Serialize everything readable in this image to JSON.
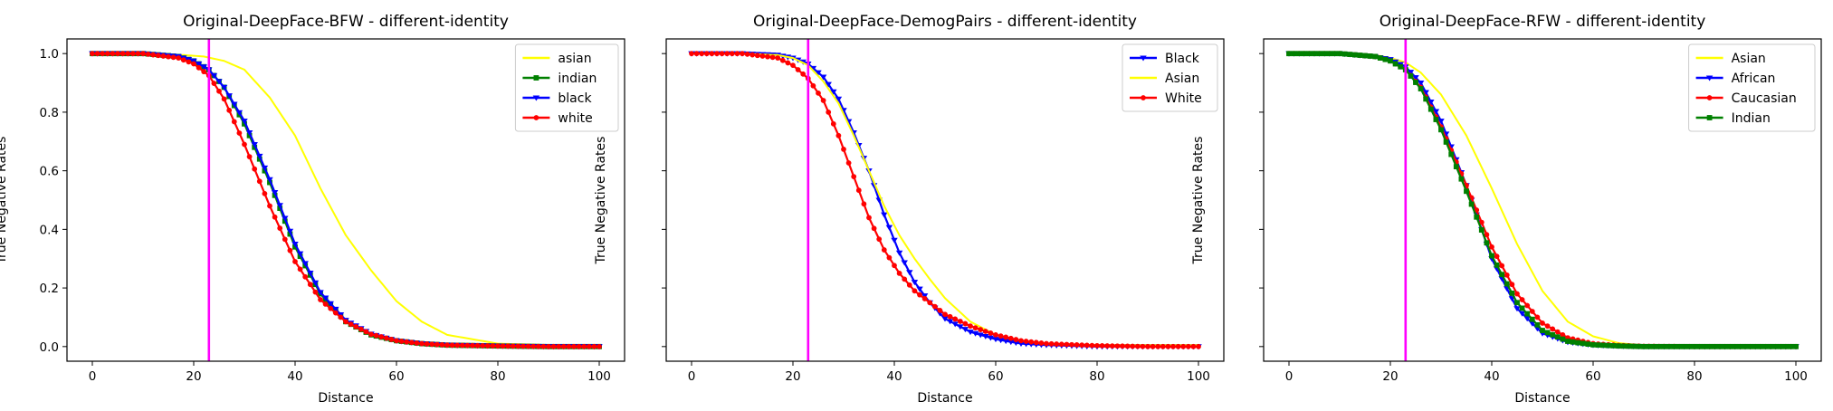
{
  "chart_data": [
    {
      "type": "line",
      "title": "Original-DeepFace-BFW - different-identity",
      "xlabel": "Distance",
      "ylabel": "True Negative Rates",
      "xlim": [
        -5,
        105
      ],
      "ylim": [
        -0.05,
        1.05
      ],
      "xticks": [
        0,
        20,
        40,
        60,
        80,
        100
      ],
      "yticks": [
        0.0,
        0.2,
        0.4,
        0.6,
        0.8,
        1.0
      ],
      "ytick_labels_shown": true,
      "threshold_x": 23,
      "threshold_color": "#ff00ff",
      "legend_location": "top-right",
      "series": [
        {
          "name": "asian",
          "color": "#ffff00",
          "marker": "none",
          "x": [
            0,
            10,
            18,
            22,
            26,
            30,
            35,
            40,
            45,
            50,
            55,
            60,
            65,
            70,
            80,
            90,
            100
          ],
          "y": [
            1.0,
            1.0,
            0.995,
            0.99,
            0.975,
            0.945,
            0.85,
            0.72,
            0.54,
            0.38,
            0.26,
            0.155,
            0.085,
            0.04,
            0.01,
            0.005,
            0.005
          ]
        },
        {
          "name": "indian",
          "color": "#008000",
          "marker": "square",
          "x": [
            0,
            10,
            17,
            20,
            23,
            26,
            30,
            35,
            40,
            45,
            50,
            55,
            60,
            65,
            70,
            80,
            90,
            100
          ],
          "y": [
            1.0,
            1.0,
            0.99,
            0.975,
            0.945,
            0.885,
            0.76,
            0.56,
            0.34,
            0.18,
            0.085,
            0.04,
            0.02,
            0.01,
            0.005,
            0.002,
            0.0,
            0.0
          ]
        },
        {
          "name": "black",
          "color": "#0000ff",
          "marker": "triangle-down",
          "x": [
            0,
            10,
            17,
            20,
            23,
            26,
            30,
            35,
            40,
            45,
            50,
            55,
            60,
            65,
            70,
            80,
            90,
            100
          ],
          "y": [
            1.0,
            1.0,
            0.99,
            0.975,
            0.945,
            0.885,
            0.77,
            0.57,
            0.35,
            0.185,
            0.09,
            0.043,
            0.02,
            0.01,
            0.005,
            0.002,
            0.0,
            0.0
          ]
        },
        {
          "name": "white",
          "color": "#ff0000",
          "marker": "circle",
          "x": [
            0,
            10,
            17,
            20,
            23,
            26,
            30,
            35,
            40,
            45,
            50,
            55,
            60,
            65,
            70,
            80,
            90,
            100
          ],
          "y": [
            1.0,
            1.0,
            0.985,
            0.965,
            0.925,
            0.845,
            0.69,
            0.48,
            0.29,
            0.16,
            0.085,
            0.042,
            0.02,
            0.01,
            0.005,
            0.002,
            0.0,
            0.0
          ]
        }
      ]
    },
    {
      "type": "line",
      "title": "Original-DeepFace-DemogPairs - different-identity",
      "xlabel": "Distance",
      "ylabel": "True Negative Rates",
      "xlim": [
        -5,
        105
      ],
      "ylim": [
        -0.05,
        1.05
      ],
      "xticks": [
        0,
        20,
        40,
        60,
        80,
        100
      ],
      "yticks": [
        0.0,
        0.2,
        0.4,
        0.6,
        0.8,
        1.0
      ],
      "ytick_labels_shown": false,
      "threshold_x": 23,
      "threshold_color": "#ff00ff",
      "legend_location": "top-right",
      "series": [
        {
          "name": "Black",
          "color": "#0000ff",
          "marker": "triangle-down",
          "x": [
            0,
            10,
            17,
            20,
            23,
            26,
            29,
            32,
            35,
            38,
            41,
            44,
            47,
            50,
            55,
            60,
            65,
            70,
            80,
            90,
            100
          ],
          "y": [
            1.0,
            1.0,
            0.995,
            0.985,
            0.965,
            0.92,
            0.845,
            0.73,
            0.6,
            0.45,
            0.32,
            0.22,
            0.15,
            0.095,
            0.05,
            0.025,
            0.01,
            0.005,
            0.0,
            0.0,
            0.0
          ]
        },
        {
          "name": "Asian",
          "color": "#ffff00",
          "marker": "none",
          "x": [
            0,
            10,
            17,
            20,
            23,
            26,
            29,
            32,
            35,
            38,
            41,
            44,
            47,
            50,
            55,
            60,
            65,
            70,
            80,
            90,
            100
          ],
          "y": [
            1.0,
            1.0,
            0.995,
            0.985,
            0.96,
            0.905,
            0.83,
            0.72,
            0.6,
            0.48,
            0.38,
            0.3,
            0.23,
            0.165,
            0.085,
            0.04,
            0.02,
            0.01,
            0.005,
            0.005,
            0.005
          ]
        },
        {
          "name": "White",
          "color": "#ff0000",
          "marker": "circle",
          "x": [
            0,
            10,
            17,
            20,
            23,
            26,
            29,
            32,
            35,
            38,
            41,
            44,
            47,
            50,
            55,
            60,
            65,
            70,
            80,
            90,
            100
          ],
          "y": [
            1.0,
            1.0,
            0.985,
            0.96,
            0.915,
            0.84,
            0.72,
            0.58,
            0.44,
            0.33,
            0.25,
            0.19,
            0.15,
            0.11,
            0.07,
            0.04,
            0.02,
            0.01,
            0.003,
            0.0,
            0.0
          ]
        }
      ]
    },
    {
      "type": "line",
      "title": "Original-DeepFace-RFW - different-identity",
      "xlabel": "Distance",
      "ylabel": "True Negative Rates",
      "xlim": [
        -5,
        105
      ],
      "ylim": [
        -0.05,
        1.05
      ],
      "xticks": [
        0,
        20,
        40,
        60,
        80,
        100
      ],
      "yticks": [
        0.0,
        0.2,
        0.4,
        0.6,
        0.8,
        1.0
      ],
      "ytick_labels_shown": false,
      "threshold_x": 23,
      "threshold_color": "#ff00ff",
      "legend_location": "top-right",
      "series": [
        {
          "name": "Asian",
          "color": "#ffff00",
          "marker": "none",
          "x": [
            0,
            10,
            17,
            20,
            23,
            26,
            30,
            35,
            40,
            45,
            50,
            55,
            60,
            65,
            70,
            80,
            90,
            100
          ],
          "y": [
            1.0,
            1.0,
            0.995,
            0.985,
            0.97,
            0.935,
            0.86,
            0.72,
            0.54,
            0.35,
            0.19,
            0.085,
            0.035,
            0.012,
            0.004,
            0.001,
            0.0,
            0.0
          ]
        },
        {
          "name": "African",
          "color": "#0000ff",
          "marker": "triangle-down",
          "x": [
            0,
            10,
            17,
            20,
            23,
            26,
            30,
            35,
            40,
            45,
            50,
            55,
            60,
            65,
            70,
            80,
            90,
            100
          ],
          "y": [
            1.0,
            1.0,
            0.99,
            0.98,
            0.955,
            0.9,
            0.77,
            0.55,
            0.3,
            0.13,
            0.045,
            0.015,
            0.005,
            0.002,
            0.0,
            0.0,
            0.0,
            0.0
          ]
        },
        {
          "name": "Caucasian",
          "color": "#ff0000",
          "marker": "circle",
          "x": [
            0,
            10,
            17,
            20,
            23,
            26,
            30,
            35,
            40,
            45,
            50,
            55,
            60,
            65,
            70,
            80,
            90,
            100
          ],
          "y": [
            1.0,
            1.0,
            0.99,
            0.975,
            0.945,
            0.885,
            0.75,
            0.55,
            0.34,
            0.18,
            0.08,
            0.03,
            0.01,
            0.004,
            0.001,
            0.0,
            0.0,
            0.0
          ]
        },
        {
          "name": "Indian",
          "color": "#008000",
          "marker": "square",
          "x": [
            0,
            10,
            17,
            20,
            23,
            26,
            30,
            35,
            40,
            45,
            50,
            55,
            60,
            65,
            70,
            80,
            90,
            100
          ],
          "y": [
            1.0,
            1.0,
            0.99,
            0.975,
            0.945,
            0.88,
            0.74,
            0.53,
            0.31,
            0.15,
            0.055,
            0.018,
            0.006,
            0.002,
            0.0,
            0.0,
            0.0,
            0.0
          ]
        }
      ]
    }
  ]
}
